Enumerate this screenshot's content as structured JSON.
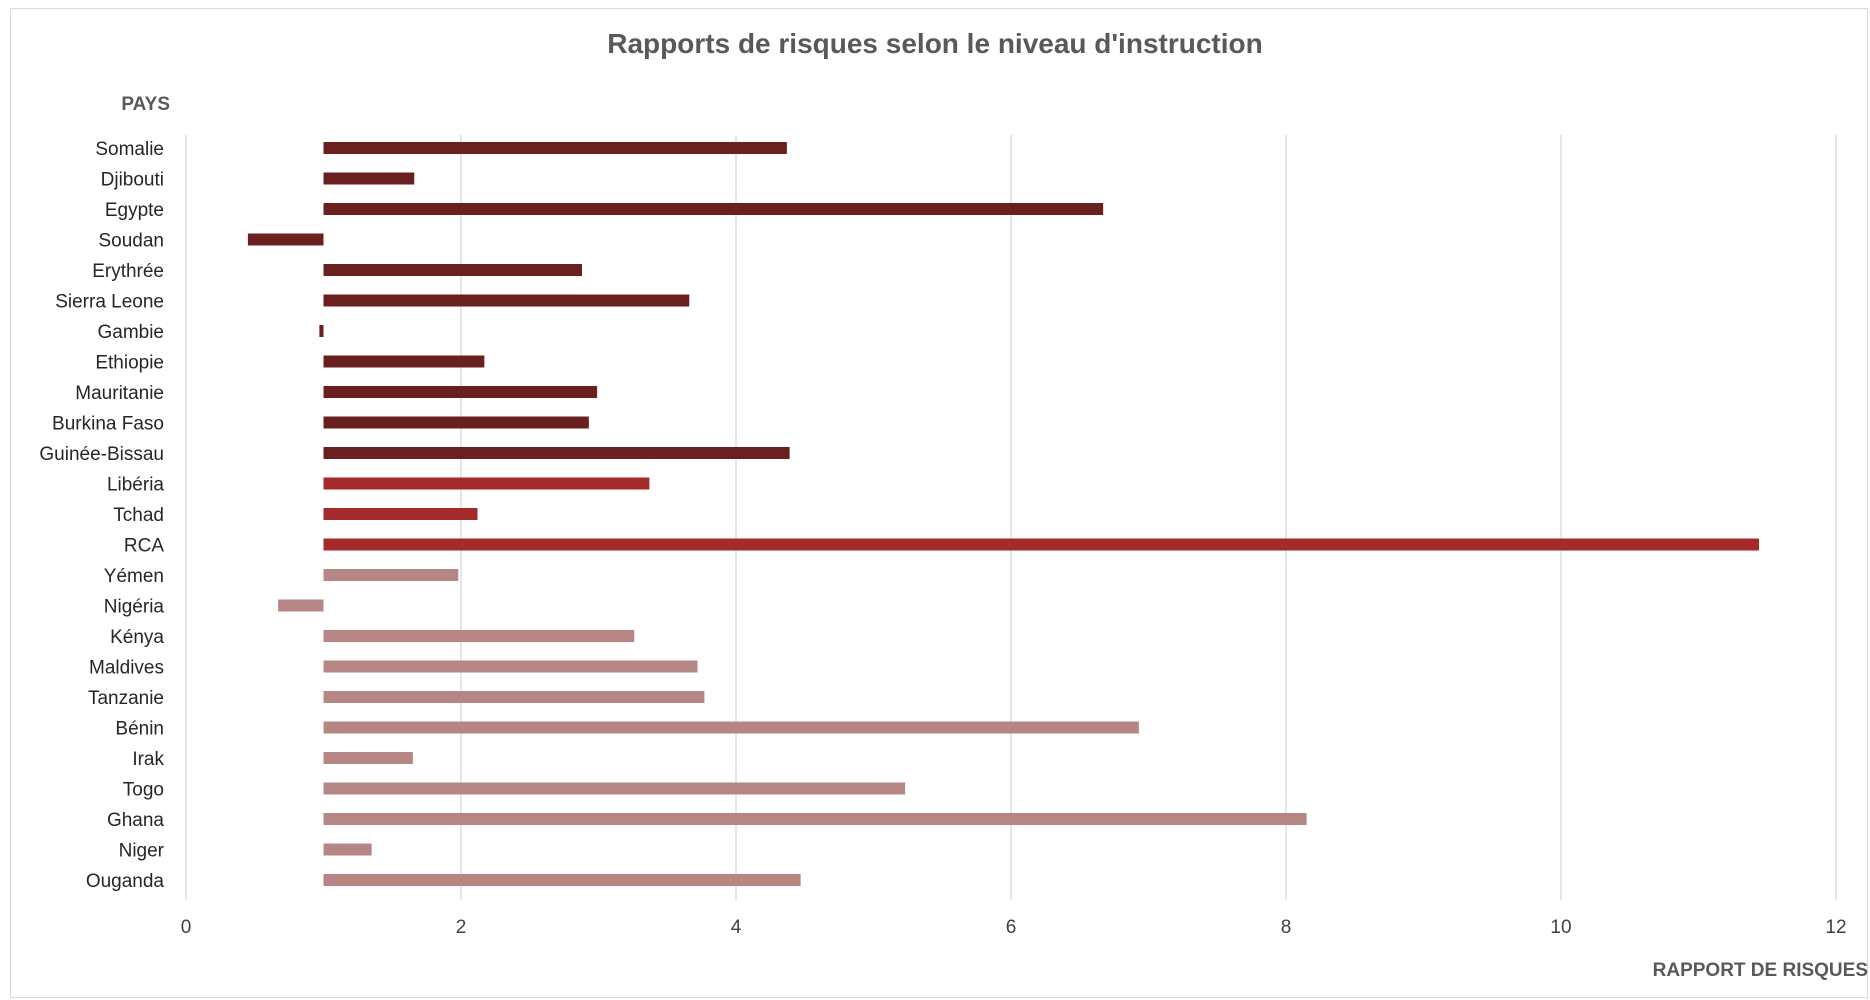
{
  "chart_data": {
    "type": "bar",
    "orientation": "horizontal",
    "title": "Rapports de risques selon le niveau d'instruction",
    "ylabel": "PAYS",
    "xlabel": "RAPPORT DE RISQUES",
    "xlim": [
      0,
      12
    ],
    "xticks": [
      "0",
      "2",
      "4",
      "6",
      "8",
      "10",
      "12"
    ],
    "baseline": 1,
    "grid": "vertical",
    "legend": "none",
    "categories": [
      "Somalie",
      "Djibouti",
      "Egypte",
      "Soudan",
      "Erythrée",
      "Sierra Leone",
      "Gambie",
      "Ethiopie",
      "Mauritanie",
      "Burkina Faso",
      "Guinée-Bissau",
      "Libéria",
      "Tchad",
      "RCA",
      "Yémen",
      "Nigéria",
      "Kénya",
      "Maldives",
      "Tanzanie",
      "Bénin",
      "Irak",
      "Togo",
      "Ghana",
      "Niger",
      "Ouganda"
    ],
    "values": [
      4.37,
      1.66,
      6.67,
      0.45,
      2.88,
      3.66,
      0.97,
      2.17,
      2.99,
      2.93,
      4.39,
      3.37,
      2.12,
      11.44,
      1.98,
      0.67,
      3.26,
      3.72,
      3.77,
      6.93,
      1.65,
      5.23,
      8.15,
      1.35,
      4.47
    ],
    "colors": [
      "#6b2020",
      "#6b2020",
      "#6b2020",
      "#6b2020",
      "#6b2020",
      "#6b2020",
      "#6b2020",
      "#6b2020",
      "#6b2020",
      "#6b2020",
      "#6b2020",
      "#a52a2a",
      "#a52a2a",
      "#a52a2a",
      "#b58683",
      "#b58683",
      "#b58683",
      "#b58683",
      "#b58683",
      "#b58683",
      "#b58683",
      "#b58683",
      "#b58683",
      "#b58683",
      "#b58683"
    ]
  }
}
